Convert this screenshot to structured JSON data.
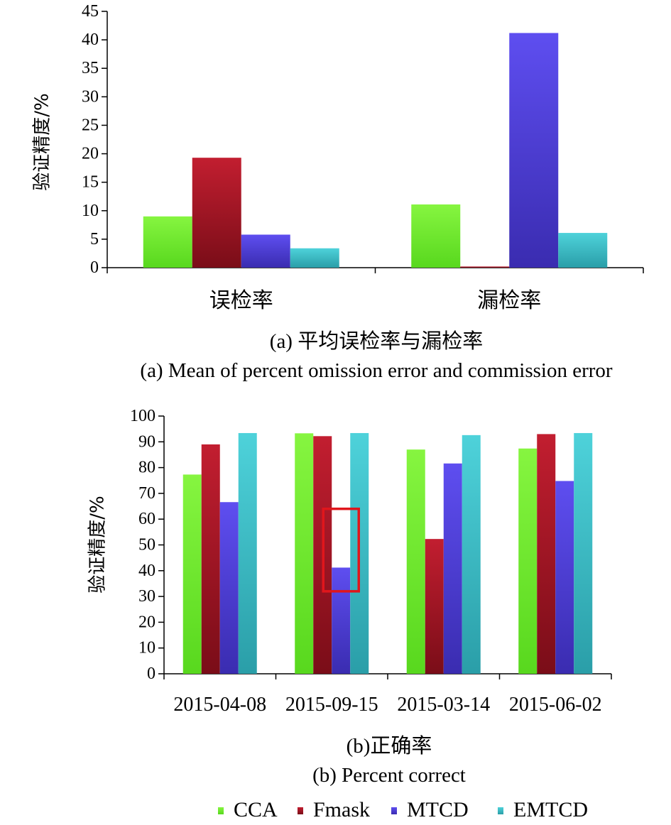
{
  "colors": {
    "CCA": "#7CF23A",
    "Fmask": "#B0182A",
    "MTCD": "#5444E0",
    "EMTCD": "#3EC4CC",
    "highlight": "#E0161C"
  },
  "chart_data": [
    {
      "type": "bar",
      "title": "(a) 平均误检率与漏检率",
      "subtitle": "(a) Mean of percent omission error and commission error",
      "xlabel": "",
      "ylabel": "验证精度/%",
      "ylim": [
        0,
        45
      ],
      "yticks": [
        "0",
        "5",
        "10",
        "15",
        "20",
        "25",
        "30",
        "35",
        "40",
        "45"
      ],
      "categories": [
        "误检率",
        "漏检率"
      ],
      "series": [
        {
          "name": "CCA",
          "values": [
            9.0,
            11.1
          ]
        },
        {
          "name": "Fmask",
          "values": [
            19.3,
            0.2
          ]
        },
        {
          "name": "MTCD",
          "values": [
            5.8,
            41.2
          ]
        },
        {
          "name": "EMTCD",
          "values": [
            3.4,
            6.1
          ]
        }
      ],
      "grid": false
    },
    {
      "type": "bar",
      "title": "(b)正确率",
      "subtitle": "(b) Percent correct",
      "xlabel": "",
      "ylabel": "验证精度/%",
      "ylim": [
        0,
        100
      ],
      "yticks": [
        "0",
        "10",
        "20",
        "30",
        "40",
        "50",
        "60",
        "70",
        "80",
        "90",
        "100"
      ],
      "categories": [
        "2015-04-08",
        "2015-09-15",
        "2015-03-14",
        "2015-06-02"
      ],
      "series": [
        {
          "name": "CCA",
          "values": [
            77.3,
            93.3,
            87.0,
            87.4
          ]
        },
        {
          "name": "Fmask",
          "values": [
            89.0,
            92.2,
            52.3,
            93.0
          ]
        },
        {
          "name": "MTCD",
          "values": [
            66.6,
            41.2,
            81.6,
            74.8
          ]
        },
        {
          "name": "EMTCD",
          "values": [
            93.4,
            93.4,
            92.6,
            93.4
          ]
        }
      ],
      "highlight": {
        "category": "2015-09-15",
        "series": "MTCD",
        "y_range": [
          32,
          64
        ]
      },
      "grid": false
    }
  ],
  "legend": {
    "position": "bottom",
    "items": [
      "CCA",
      "Fmask",
      "MTCD",
      "EMTCD"
    ]
  }
}
